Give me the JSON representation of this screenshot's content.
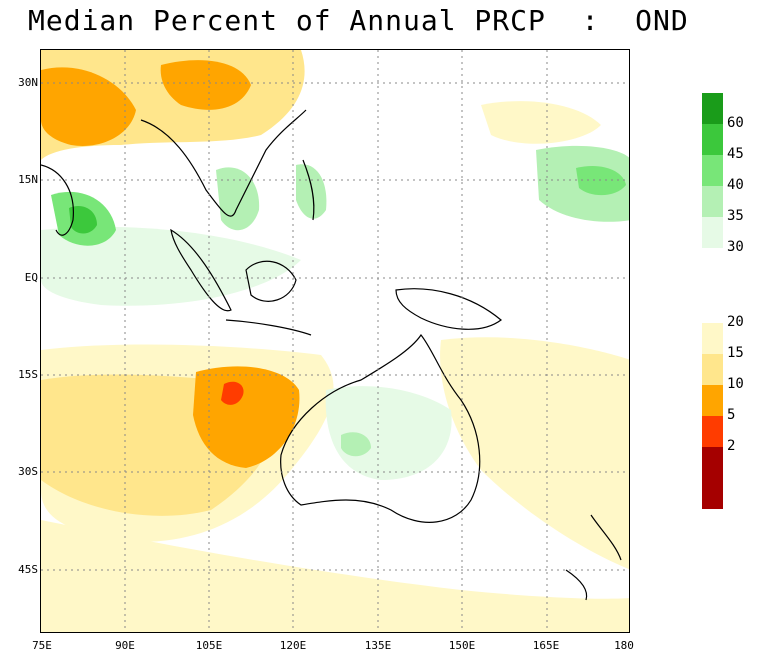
{
  "title": "Median Percent of Annual PRCP  :  OND",
  "map": {
    "lon_range": [
      75,
      180
    ],
    "lat_range": [
      -55,
      35
    ],
    "x_ticks": [
      "75E",
      "90E",
      "105E",
      "120E",
      "135E",
      "150E",
      "165E",
      "180"
    ],
    "y_ticks": [
      "30N",
      "15N",
      "EQ",
      "15S",
      "30S",
      "45S"
    ],
    "grid": "dotted"
  },
  "legend": {
    "upper": [
      {
        "label": "",
        "color": "#1a9c1a"
      },
      {
        "label": "60",
        "color": "#3cc83c"
      },
      {
        "label": "45",
        "color": "#78e678"
      },
      {
        "label": "40",
        "color": "#b4f0b4"
      },
      {
        "label": "35",
        "color": "#e6fae6"
      },
      {
        "label": "30",
        "color": "#ffffff"
      }
    ],
    "lower": [
      {
        "label": "20",
        "color": "#fff8c8"
      },
      {
        "label": "15",
        "color": "#ffe68c"
      },
      {
        "label": "10",
        "color": "#ffa500"
      },
      {
        "label": "5",
        "color": "#ff3c00"
      },
      {
        "label": "2",
        "color": "#a50000"
      },
      {
        "label": "",
        "color": "#a50000"
      }
    ]
  }
}
